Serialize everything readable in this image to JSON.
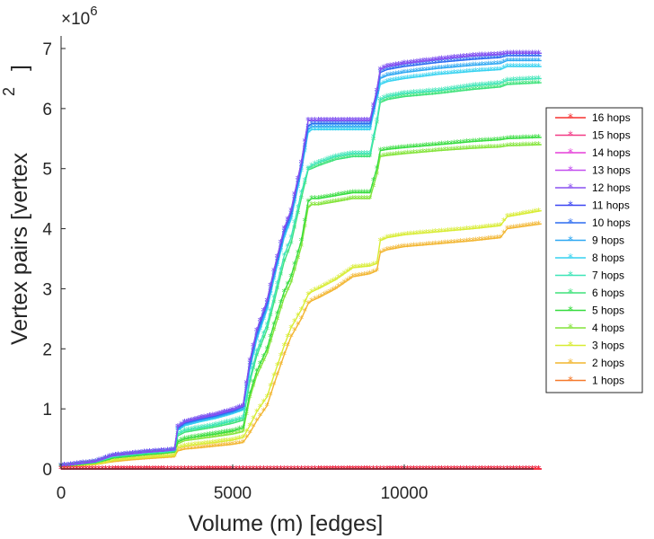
{
  "chart_data": {
    "type": "line",
    "title": "",
    "xlabel": "Volume (m) [edges]",
    "ylabel": "Vertex pairs [vertex",
    "ylabel_superscript": "2",
    "ylabel_close": "]",
    "y_exponent": {
      "base": "×10",
      "power": "6"
    },
    "xlim": [
      0,
      14000
    ],
    "ylim": [
      0,
      7.3
    ],
    "x_ticks": [
      0,
      5000,
      10000
    ],
    "x_tick_labels": [
      "0",
      "5000",
      "10000"
    ],
    "y_ticks": [
      0,
      1,
      2,
      3,
      4,
      5,
      6,
      7
    ],
    "y_tick_labels": [
      "0",
      "1",
      "2",
      "3",
      "4",
      "5",
      "6",
      "7"
    ],
    "y_units_note": "values in millions (×10^6)",
    "legend_position": "outside-right",
    "grid": false,
    "x": [
      0,
      1000,
      1400,
      1500,
      2000,
      2500,
      3000,
      3300,
      3400,
      3600,
      4000,
      4500,
      5000,
      5300,
      5500,
      5700,
      6000,
      6200,
      6500,
      6700,
      7000,
      7200,
      7300,
      7500,
      8000,
      8500,
      9000,
      9200,
      9300,
      9500,
      10000,
      11000,
      12000,
      12800,
      13000,
      14000
    ],
    "series": [
      {
        "name": "16 hops",
        "color": "#f5302f",
        "values": [
          0,
          0,
          0,
          0,
          0,
          0,
          0,
          0,
          0,
          0,
          0,
          0,
          0,
          0,
          0,
          0,
          0,
          0,
          0,
          0,
          0,
          0,
          0,
          0,
          0,
          0,
          0,
          0,
          0,
          0,
          0,
          0,
          0,
          0,
          0,
          0
        ]
      },
      {
        "name": "15 hops",
        "color": "#f23a86",
        "values": [
          0,
          0,
          0,
          0,
          0,
          0,
          0,
          0,
          0,
          0,
          0,
          0,
          0,
          0,
          0,
          0,
          0,
          0,
          0,
          0,
          0,
          0,
          0,
          0,
          0,
          0,
          0,
          0,
          0,
          0,
          0,
          0,
          0,
          0,
          0,
          0
        ]
      },
      {
        "name": "14 hops",
        "color": "#e53fd9",
        "values": [
          0,
          0,
          0,
          0,
          0,
          0,
          0,
          0,
          0,
          0,
          0,
          0,
          0,
          0,
          0,
          0,
          0,
          0,
          0,
          0,
          0,
          0,
          0,
          0,
          0,
          0,
          0,
          0,
          0,
          0,
          0,
          0,
          0,
          0,
          0,
          0
        ]
      },
      {
        "name": "13 hops",
        "color": "#c34ef0",
        "values": [
          0,
          0,
          0,
          0,
          0,
          0,
          0,
          0,
          0,
          0,
          0,
          0,
          0,
          0,
          0,
          0,
          0,
          0,
          0,
          0,
          0,
          0,
          0,
          0,
          0,
          0,
          0,
          0,
          0,
          0,
          0,
          0,
          0,
          0,
          0,
          0
        ]
      },
      {
        "name": "12 hops",
        "color": "#8a50f0",
        "values": [
          0.05,
          0.12,
          0.2,
          0.22,
          0.25,
          0.28,
          0.3,
          0.32,
          0.7,
          0.78,
          0.84,
          0.9,
          0.98,
          1.05,
          1.8,
          2.3,
          2.8,
          3.3,
          4.0,
          4.3,
          5.1,
          5.8,
          5.8,
          5.8,
          5.8,
          5.8,
          5.8,
          6.3,
          6.65,
          6.7,
          6.75,
          6.82,
          6.88,
          6.9,
          6.92,
          6.92
        ]
      },
      {
        "name": "11 hops",
        "color": "#3b45f2",
        "values": [
          0.05,
          0.12,
          0.2,
          0.22,
          0.25,
          0.28,
          0.3,
          0.32,
          0.7,
          0.78,
          0.84,
          0.9,
          0.98,
          1.05,
          1.8,
          2.3,
          2.8,
          3.3,
          4.0,
          4.3,
          5.1,
          5.8,
          5.8,
          5.8,
          5.8,
          5.8,
          5.8,
          6.3,
          6.65,
          6.7,
          6.75,
          6.82,
          6.88,
          6.9,
          6.92,
          6.92
        ]
      },
      {
        "name": "10 hops",
        "color": "#2d6cf0",
        "values": [
          0.05,
          0.12,
          0.2,
          0.22,
          0.25,
          0.28,
          0.3,
          0.32,
          0.68,
          0.76,
          0.82,
          0.88,
          0.96,
          1.03,
          1.75,
          2.25,
          2.75,
          3.25,
          3.95,
          4.25,
          5.05,
          5.7,
          5.75,
          5.75,
          5.75,
          5.75,
          5.75,
          6.25,
          6.6,
          6.65,
          6.7,
          6.77,
          6.82,
          6.85,
          6.88,
          6.88
        ]
      },
      {
        "name": "9 hops",
        "color": "#2fa8f2",
        "values": [
          0.05,
          0.12,
          0.2,
          0.22,
          0.25,
          0.28,
          0.3,
          0.31,
          0.66,
          0.74,
          0.8,
          0.86,
          0.94,
          1.0,
          1.7,
          2.2,
          2.7,
          3.2,
          3.9,
          4.2,
          5.0,
          5.65,
          5.7,
          5.7,
          5.7,
          5.7,
          5.7,
          6.2,
          6.5,
          6.55,
          6.6,
          6.67,
          6.72,
          6.75,
          6.8,
          6.8
        ]
      },
      {
        "name": "8 hops",
        "color": "#36d2f0",
        "values": [
          0.05,
          0.12,
          0.2,
          0.22,
          0.25,
          0.28,
          0.3,
          0.31,
          0.64,
          0.72,
          0.78,
          0.84,
          0.92,
          0.98,
          1.65,
          2.15,
          2.65,
          3.15,
          3.85,
          4.15,
          4.95,
          5.6,
          5.65,
          5.65,
          5.65,
          5.65,
          5.65,
          6.15,
          6.4,
          6.45,
          6.5,
          6.57,
          6.62,
          6.65,
          6.7,
          6.7
        ]
      },
      {
        "name": "7 hops",
        "color": "#3de5b7",
        "values": [
          0.05,
          0.11,
          0.18,
          0.2,
          0.23,
          0.26,
          0.28,
          0.3,
          0.58,
          0.64,
          0.68,
          0.73,
          0.8,
          0.85,
          1.5,
          1.95,
          2.4,
          2.85,
          3.55,
          3.85,
          4.6,
          5.0,
          5.05,
          5.1,
          5.2,
          5.25,
          5.25,
          5.8,
          6.15,
          6.2,
          6.25,
          6.3,
          6.38,
          6.42,
          6.47,
          6.5
        ]
      },
      {
        "name": "6 hops",
        "color": "#3ee27a",
        "values": [
          0.05,
          0.11,
          0.18,
          0.2,
          0.23,
          0.26,
          0.28,
          0.3,
          0.55,
          0.61,
          0.65,
          0.7,
          0.76,
          0.81,
          1.45,
          1.88,
          2.32,
          2.76,
          3.45,
          3.75,
          4.5,
          4.98,
          5.0,
          5.05,
          5.15,
          5.2,
          5.2,
          5.75,
          6.1,
          6.15,
          6.2,
          6.25,
          6.32,
          6.36,
          6.4,
          6.43
        ]
      },
      {
        "name": "5 hops",
        "color": "#36dc3e",
        "values": [
          0.04,
          0.1,
          0.16,
          0.18,
          0.21,
          0.24,
          0.26,
          0.28,
          0.45,
          0.5,
          0.54,
          0.58,
          0.63,
          0.68,
          1.25,
          1.62,
          2.0,
          2.4,
          2.95,
          3.2,
          3.8,
          4.45,
          4.5,
          4.5,
          4.55,
          4.6,
          4.6,
          5.0,
          5.3,
          5.32,
          5.35,
          5.4,
          5.45,
          5.48,
          5.5,
          5.52
        ]
      },
      {
        "name": "4 hops",
        "color": "#84e43a",
        "values": [
          0.04,
          0.1,
          0.16,
          0.18,
          0.21,
          0.24,
          0.26,
          0.28,
          0.42,
          0.47,
          0.5,
          0.54,
          0.58,
          0.62,
          1.18,
          1.55,
          1.92,
          2.3,
          2.85,
          3.1,
          3.7,
          4.35,
          4.4,
          4.4,
          4.45,
          4.5,
          4.5,
          4.9,
          5.2,
          5.22,
          5.25,
          5.3,
          5.34,
          5.36,
          5.38,
          5.4
        ]
      },
      {
        "name": "3 hops",
        "color": "#d8ec33",
        "values": [
          0.03,
          0.08,
          0.12,
          0.14,
          0.17,
          0.19,
          0.21,
          0.22,
          0.35,
          0.38,
          0.41,
          0.44,
          0.48,
          0.52,
          0.72,
          0.95,
          1.2,
          1.55,
          2.05,
          2.35,
          2.65,
          2.9,
          2.95,
          3.0,
          3.15,
          3.35,
          3.38,
          3.42,
          3.8,
          3.85,
          3.9,
          3.95,
          4.0,
          4.05,
          4.2,
          4.3
        ]
      },
      {
        "name": "2 hops",
        "color": "#f2b52f",
        "values": [
          0.03,
          0.07,
          0.11,
          0.12,
          0.15,
          0.17,
          0.19,
          0.2,
          0.3,
          0.33,
          0.35,
          0.38,
          0.41,
          0.44,
          0.6,
          0.8,
          1.05,
          1.4,
          1.9,
          2.2,
          2.5,
          2.75,
          2.8,
          2.85,
          3.0,
          3.2,
          3.25,
          3.3,
          3.6,
          3.65,
          3.7,
          3.75,
          3.8,
          3.85,
          4.0,
          4.08
        ]
      },
      {
        "name": "1 hops",
        "color": "#f57a2c",
        "values": [
          0,
          0,
          0,
          0,
          0,
          0,
          0,
          0,
          0,
          0,
          0,
          0,
          0,
          0,
          0,
          0,
          0,
          0,
          0,
          0,
          0,
          0,
          0,
          0,
          0,
          0,
          0,
          0,
          0,
          0,
          0,
          0,
          0,
          0,
          0,
          0
        ]
      }
    ]
  }
}
